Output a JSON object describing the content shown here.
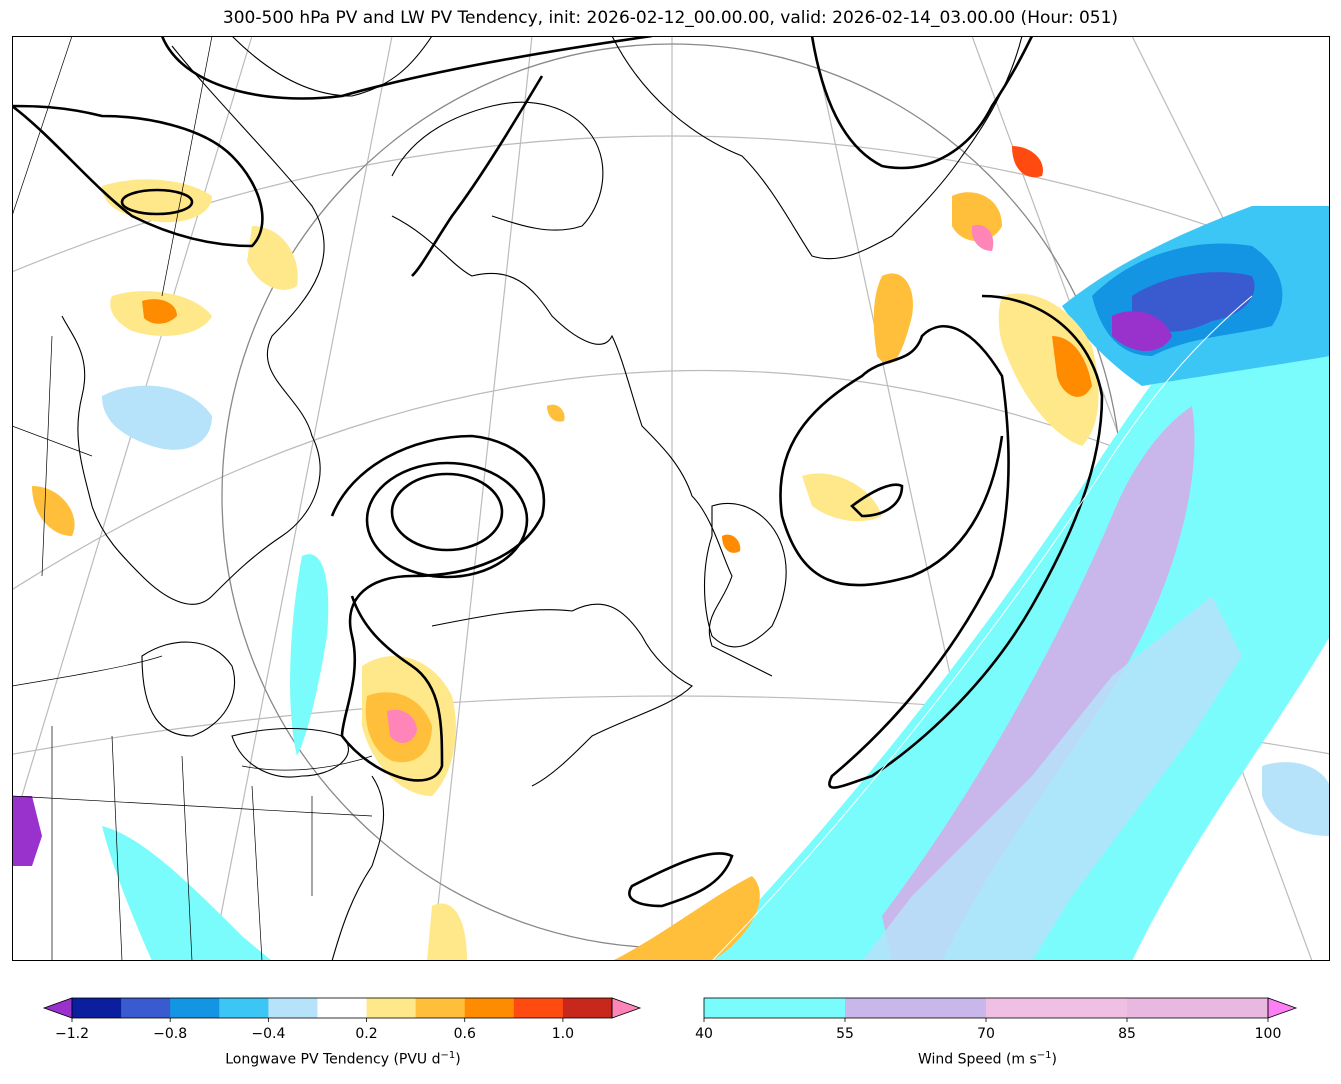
{
  "title": "300-500 hPa PV and LW PV Tendency, init: 2026-02-12_00.00.00, valid: 2026-02-14_03.00.00 (Hour: 051)",
  "pv_colorbar": {
    "label": "Longwave PV Tendency (PVU d",
    "label_sup": "−1",
    "label_end": ")",
    "range": [
      -1.2,
      1.2
    ],
    "levels": [
      -1.2,
      -1.0,
      -0.8,
      -0.6,
      -0.4,
      -0.2,
      0.2,
      0.4,
      0.6,
      0.8,
      1.0,
      1.2
    ],
    "ticks": [
      "−1.2",
      "−0.8",
      "−0.4",
      "0.2",
      "0.6",
      "1.0"
    ],
    "tick_values": [
      -1.2,
      -0.8,
      -0.4,
      0.2,
      0.6,
      1.0
    ],
    "colors_under": "#9932cc",
    "colors": [
      "#0b1f9e",
      "#3a5bd0",
      "#1495e4",
      "#3cc6f5",
      "#b6e2fa",
      "#ffffff",
      "#ffe88a",
      "#ffbf3a",
      "#ff8c00",
      "#ff4a10",
      "#c8281c"
    ],
    "colors_over": "#ff85b8"
  },
  "wind_colorbar": {
    "label": "Wind Speed (m s",
    "label_sup": "−1",
    "label_end": ")",
    "range": [
      40,
      100
    ],
    "ticks": [
      "40",
      "55",
      "70",
      "85",
      "100"
    ],
    "tick_values": [
      40,
      55,
      70,
      85,
      100
    ],
    "colors": [
      "#7bfcfc",
      "#c9b6ea",
      "#f0c0e4",
      "#e8b8e0"
    ],
    "colors_over": "#ff7ef5"
  },
  "colors": {
    "coast": "#000000",
    "grid": "#bbbbbb",
    "pv_contour": "#000000"
  }
}
